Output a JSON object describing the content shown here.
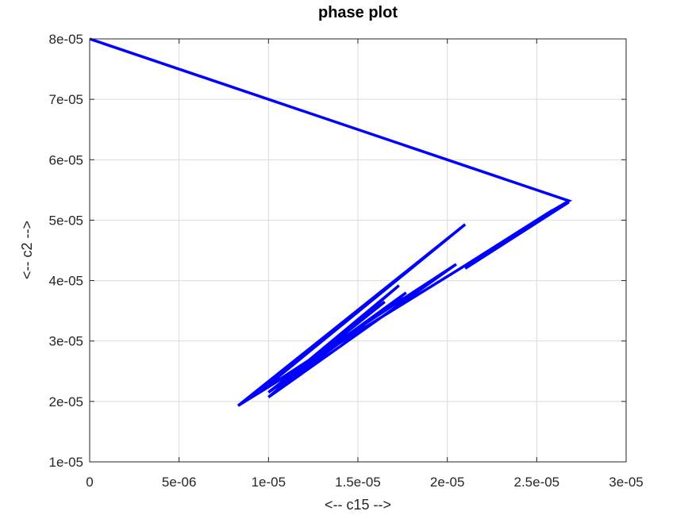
{
  "chart_data": {
    "type": "line",
    "title": "phase plot",
    "xlabel": "<-- c15 -->",
    "ylabel": "<-- c2 -->",
    "xlim": [
      0,
      3e-05
    ],
    "ylim": [
      1e-05,
      8e-05
    ],
    "grid": true,
    "x_ticks": [
      0,
      5e-06,
      1e-05,
      1.5e-05,
      2e-05,
      2.5e-05,
      3e-05
    ],
    "x_tick_labels": [
      "0",
      "5e-06",
      "1e-05",
      "1.5e-05",
      "2e-05",
      "2.5e-05",
      "3e-05"
    ],
    "y_ticks": [
      1e-05,
      2e-05,
      3e-05,
      4e-05,
      5e-05,
      6e-05,
      7e-05,
      8e-05
    ],
    "y_tick_labels": [
      "1e-05",
      "2e-05",
      "3e-05",
      "4e-05",
      "5e-05",
      "6e-05",
      "7e-05",
      "8e-05"
    ],
    "color": "#0000ff",
    "series": [
      {
        "x": [
          0,
          2.68e-05,
          2.6e-05,
          2.1e-05,
          2.68e-05,
          2.58e-05,
          2.1e-05,
          8.3e-06,
          2.1e-05,
          9.4e-06,
          2.05e-05,
          1e-05,
          1.73e-05,
          1.05e-05,
          1.77e-05,
          1e-05,
          1.65e-05,
          1.08e-05,
          1.75e-05,
          1.05e-05,
          1.6e-05,
          1.1e-05
        ],
        "y": [
          8e-05,
          5.32e-05,
          5.18e-05,
          4.2e-05,
          5.3e-05,
          5.15e-05,
          4.25e-05,
          1.93e-05,
          4.93e-05,
          2.13e-05,
          4.27e-05,
          2.07e-05,
          3.92e-05,
          2.25e-05,
          3.8e-05,
          2.15e-05,
          3.65e-05,
          2.3e-05,
          3.75e-05,
          2.2e-05,
          3.55e-05,
          2.35e-05
        ]
      }
    ]
  }
}
